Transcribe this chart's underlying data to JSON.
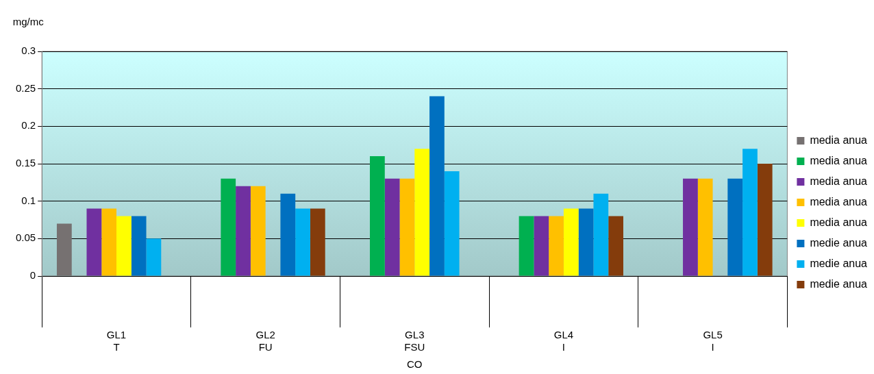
{
  "chart_data": {
    "type": "bar",
    "ylabel": "mg/mc",
    "xlabel": "CO",
    "categories": [
      "GL1\nT",
      "GL2\nFU",
      "GL3\nFSU",
      "GL4\nI",
      "GL5\nI"
    ],
    "series": [
      {
        "name": "media anua",
        "color": "#767171",
        "values": [
          0.07,
          null,
          null,
          null,
          null
        ]
      },
      {
        "name": "media anua",
        "color": "#00b050",
        "values": [
          null,
          0.13,
          0.16,
          0.08,
          null
        ]
      },
      {
        "name": "media anua",
        "color": "#7030a0",
        "values": [
          0.09,
          0.12,
          0.13,
          0.08,
          0.13
        ]
      },
      {
        "name": "media anua",
        "color": "#ffc000",
        "values": [
          0.09,
          0.12,
          0.13,
          0.08,
          0.13
        ]
      },
      {
        "name": "media anua",
        "color": "#ffff00",
        "values": [
          0.08,
          null,
          0.17,
          0.09,
          null
        ]
      },
      {
        "name": "medie anua",
        "color": "#0070c0",
        "values": [
          0.08,
          0.11,
          0.24,
          0.09,
          0.13
        ]
      },
      {
        "name": "medie anua",
        "color": "#00b0f0",
        "values": [
          0.05,
          0.09,
          0.14,
          0.11,
          0.17
        ]
      },
      {
        "name": "medie anua",
        "color": "#843c0c",
        "values": [
          null,
          0.09,
          null,
          0.08,
          0.15
        ]
      }
    ],
    "ylim": [
      0,
      0.3
    ],
    "yticks": [
      0,
      0.05,
      0.1,
      0.15,
      0.2,
      0.25,
      0.3
    ],
    "grid": "y",
    "legend": "right"
  }
}
